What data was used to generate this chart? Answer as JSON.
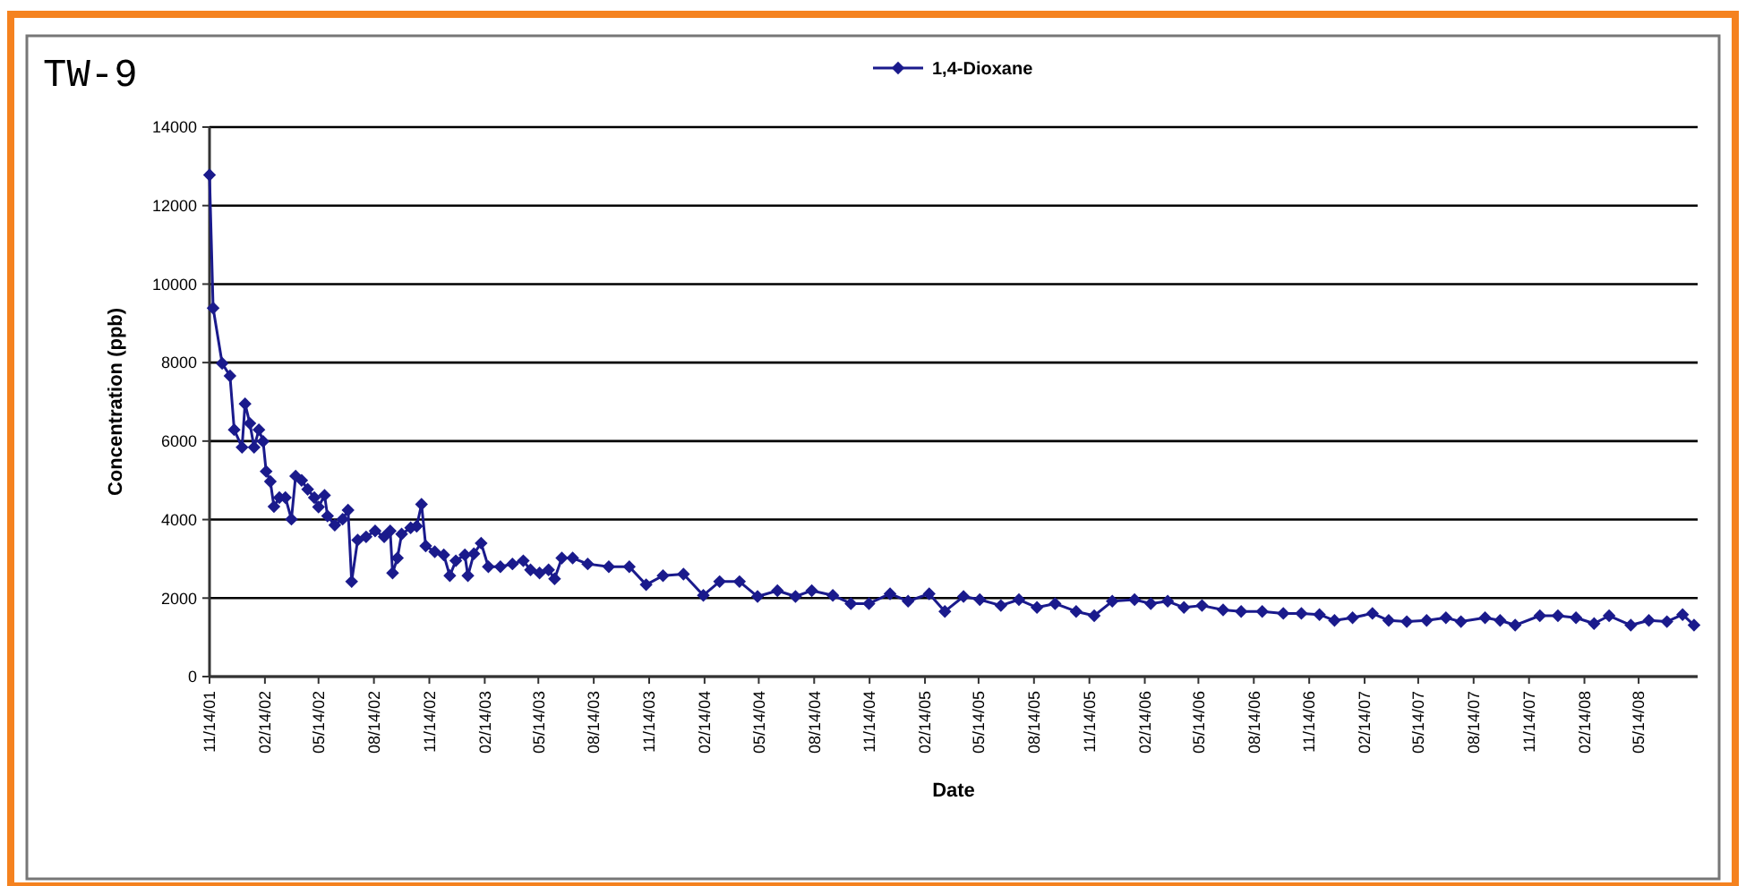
{
  "chart_data": {
    "type": "line",
    "title": "TW-9",
    "xlabel": "Date",
    "ylabel": "Concentration (ppb)",
    "legend": "top",
    "grid": "y",
    "marker": "diamond",
    "line_style": "solid",
    "xlim": [
      "2001-11-14",
      "2008-08-20"
    ],
    "ylim": [
      0,
      14000
    ],
    "yticks": [
      0,
      2000,
      4000,
      6000,
      8000,
      10000,
      12000,
      14000
    ],
    "xticks": [
      {
        "value": "2001-11-14",
        "label": "11/14/01"
      },
      {
        "value": "2002-02-14",
        "label": "02/14/02"
      },
      {
        "value": "2002-05-14",
        "label": "05/14/02"
      },
      {
        "value": "2002-08-14",
        "label": "08/14/02"
      },
      {
        "value": "2002-11-14",
        "label": "11/14/02"
      },
      {
        "value": "2003-02-14",
        "label": "02/14/03"
      },
      {
        "value": "2003-05-14",
        "label": "05/14/03"
      },
      {
        "value": "2003-08-14",
        "label": "08/14/03"
      },
      {
        "value": "2003-11-14",
        "label": "11/14/03"
      },
      {
        "value": "2004-02-14",
        "label": "02/14/04"
      },
      {
        "value": "2004-05-14",
        "label": "05/14/04"
      },
      {
        "value": "2004-08-14",
        "label": "08/14/04"
      },
      {
        "value": "2004-11-14",
        "label": "11/14/04"
      },
      {
        "value": "2005-02-14",
        "label": "02/14/05"
      },
      {
        "value": "2005-05-14",
        "label": "05/14/05"
      },
      {
        "value": "2005-08-14",
        "label": "08/14/05"
      },
      {
        "value": "2005-11-14",
        "label": "11/14/05"
      },
      {
        "value": "2006-02-14",
        "label": "02/14/06"
      },
      {
        "value": "2006-05-14",
        "label": "05/14/06"
      },
      {
        "value": "2006-08-14",
        "label": "08/14/06"
      },
      {
        "value": "2006-11-14",
        "label": "11/14/06"
      },
      {
        "value": "2007-02-14",
        "label": "02/14/07"
      },
      {
        "value": "2007-05-14",
        "label": "05/14/07"
      },
      {
        "value": "2007-08-14",
        "label": "08/14/07"
      },
      {
        "value": "2007-11-14",
        "label": "11/14/07"
      },
      {
        "value": "2008-02-14",
        "label": "02/14/08"
      },
      {
        "value": "2008-05-14",
        "label": "05/14/08"
      }
    ],
    "x": [
      "2001-11-14",
      "2001-11-20",
      "2001-12-05",
      "2001-12-18",
      "2001-12-25",
      "2002-01-07",
      "2002-01-12",
      "2002-01-20",
      "2002-01-27",
      "2002-02-04",
      "2002-02-11",
      "2002-02-16",
      "2002-02-23",
      "2002-03-01",
      "2002-03-10",
      "2002-03-20",
      "2002-03-30",
      "2002-04-06",
      "2002-04-16",
      "2002-04-26",
      "2002-05-07",
      "2002-05-14",
      "2002-05-24",
      "2002-05-29",
      "2002-06-10",
      "2002-06-23",
      "2002-07-02",
      "2002-07-08",
      "2002-07-18",
      "2002-08-01",
      "2002-08-16",
      "2002-08-31",
      "2002-09-10",
      "2002-09-14",
      "2002-09-22",
      "2002-09-29",
      "2002-10-14",
      "2002-10-24",
      "2002-11-01",
      "2002-11-08",
      "2002-11-23",
      "2002-12-08",
      "2002-12-18",
      "2002-12-28",
      "2003-01-12",
      "2003-01-17",
      "2003-01-27",
      "2003-02-08",
      "2003-02-20",
      "2003-03-12",
      "2003-04-01",
      "2003-04-19",
      "2003-05-01",
      "2003-05-16",
      "2003-05-31",
      "2003-06-10",
      "2003-06-22",
      "2003-07-10",
      "2003-08-04",
      "2003-09-08",
      "2003-10-12",
      "2003-11-09",
      "2003-12-07",
      "2004-01-10",
      "2004-02-12",
      "2004-03-10",
      "2004-04-12",
      "2004-05-12",
      "2004-06-14",
      "2004-07-14",
      "2004-08-10",
      "2004-09-14",
      "2004-10-14",
      "2004-11-13",
      "2004-12-18",
      "2005-01-17",
      "2005-02-21",
      "2005-03-19",
      "2005-04-19",
      "2005-05-16",
      "2005-06-20",
      "2005-07-20",
      "2005-08-19",
      "2005-09-18",
      "2005-10-23",
      "2005-11-22",
      "2005-12-22",
      "2006-01-28",
      "2006-02-24",
      "2006-03-24",
      "2006-04-20",
      "2006-05-20",
      "2006-06-24",
      "2006-07-24",
      "2006-08-28",
      "2006-10-02",
      "2006-11-01",
      "2006-12-01",
      "2006-12-26",
      "2007-01-25",
      "2007-02-27",
      "2007-03-26",
      "2007-04-25",
      "2007-05-28",
      "2007-06-29",
      "2007-07-24",
      "2007-09-02",
      "2007-09-27",
      "2007-10-22",
      "2007-12-02",
      "2008-01-01",
      "2008-01-31",
      "2008-03-01",
      "2008-03-26",
      "2008-05-01",
      "2008-05-31",
      "2008-06-30",
      "2008-07-26",
      "2008-08-14"
    ],
    "series": [
      {
        "name": "1,4-Dioxane",
        "color": "#1a1a8c",
        "values": [
          12780,
          9390,
          7980,
          7660,
          6290,
          5840,
          6950,
          6450,
          5840,
          6290,
          5990,
          5230,
          4970,
          4330,
          4560,
          4560,
          4010,
          5110,
          5000,
          4770,
          4560,
          4320,
          4620,
          4090,
          3860,
          4010,
          4240,
          2420,
          3480,
          3560,
          3710,
          3560,
          3710,
          2640,
          3020,
          3630,
          3790,
          3830,
          4390,
          3330,
          3180,
          3100,
          2570,
          2950,
          3100,
          2570,
          3130,
          3400,
          2800,
          2800,
          2870,
          2950,
          2720,
          2640,
          2720,
          2490,
          3020,
          3020,
          2870,
          2800,
          2800,
          2340,
          2570,
          2610,
          2070,
          2420,
          2420,
          2040,
          2190,
          2040,
          2190,
          2070,
          1860,
          1860,
          2110,
          1920,
          2110,
          1660,
          2040,
          1960,
          1810,
          1960,
          1760,
          1860,
          1660,
          1550,
          1920,
          1960,
          1860,
          1920,
          1760,
          1810,
          1700,
          1660,
          1660,
          1610,
          1610,
          1580,
          1430,
          1500,
          1610,
          1430,
          1400,
          1430,
          1500,
          1400,
          1500,
          1430,
          1310,
          1550,
          1550,
          1500,
          1350,
          1550,
          1310,
          1430,
          1400,
          1580,
          1310
        ]
      }
    ]
  }
}
